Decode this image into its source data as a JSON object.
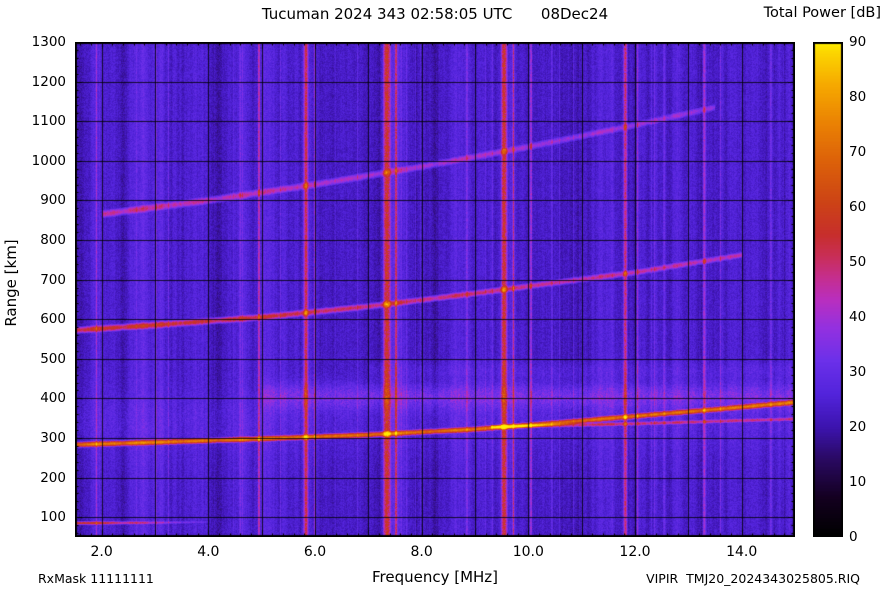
{
  "header": {
    "colorbar_title": "Total Power [dB]"
  },
  "footer": {
    "rxmask": "RxMask 11111111",
    "filename": "VIPIR  TMJ20_2024343025805.RIQ"
  },
  "chart_data": {
    "type": "heatmap",
    "title": "Tucuman 2024 343 02:58:05 UTC      08Dec24",
    "station": "Tucuman",
    "timestamp": "2024 343 02:58:05 UTC",
    "date": "08Dec24",
    "xlabel": "Frequency [MHz]",
    "ylabel": "Range [km]",
    "colorbar_label": "Total Power [dB]",
    "xlim": [
      1.5,
      15.0
    ],
    "ylim": [
      50,
      1300
    ],
    "xticks": [
      2.0,
      4.0,
      6.0,
      8.0,
      10.0,
      12.0,
      14.0
    ],
    "yticks": [
      100,
      200,
      300,
      400,
      500,
      600,
      700,
      800,
      900,
      1000,
      1100,
      1200,
      1300
    ],
    "colorbar_ticks": [
      0,
      10,
      20,
      30,
      40,
      50,
      60,
      70,
      80,
      90
    ],
    "grid": {
      "x_step_mhz": 1.0,
      "y_step_km": 100
    },
    "background_db": 24,
    "colormap": [
      [
        0,
        "#000000"
      ],
      [
        7,
        "#140020"
      ],
      [
        14,
        "#2a0a62"
      ],
      [
        20,
        "#3d14b0"
      ],
      [
        26,
        "#5324dc"
      ],
      [
        32,
        "#6c30ea"
      ],
      [
        38,
        "#9431e0"
      ],
      [
        43,
        "#b92fc0"
      ],
      [
        47,
        "#c52e90"
      ],
      [
        51,
        "#c92e58"
      ],
      [
        55,
        "#c72f2c"
      ],
      [
        61,
        "#cd4416"
      ],
      [
        68,
        "#dc600a"
      ],
      [
        75,
        "#ea8104"
      ],
      [
        82,
        "#f6a800"
      ],
      [
        88,
        "#fcd400"
      ],
      [
        90,
        "#ffef00"
      ]
    ],
    "rfi_stripes": [
      {
        "freq": 1.9,
        "sigma": 0.02,
        "amp_db": 36
      },
      {
        "freq": 3.25,
        "sigma": 0.02,
        "amp_db": 31
      },
      {
        "freq": 4.6,
        "sigma": 0.03,
        "amp_db": 32
      },
      {
        "freq": 4.95,
        "sigma": 0.025,
        "amp_db": 45
      },
      {
        "freq": 5.35,
        "sigma": 0.02,
        "amp_db": 33
      },
      {
        "freq": 5.83,
        "sigma": 0.045,
        "amp_db": 51
      },
      {
        "freq": 6.0,
        "sigma": 0.02,
        "amp_db": 42
      },
      {
        "freq": 7.35,
        "sigma": 0.07,
        "amp_db": 56
      },
      {
        "freq": 7.52,
        "sigma": 0.025,
        "amp_db": 46
      },
      {
        "freq": 8.85,
        "sigma": 0.04,
        "amp_db": 31
      },
      {
        "freq": 9.55,
        "sigma": 0.055,
        "amp_db": 55
      },
      {
        "freq": 9.72,
        "sigma": 0.02,
        "amp_db": 46
      },
      {
        "freq": 10.05,
        "sigma": 0.02,
        "amp_db": 43
      },
      {
        "freq": 11.82,
        "sigma": 0.04,
        "amp_db": 49
      },
      {
        "freq": 12.05,
        "sigma": 0.02,
        "amp_db": 38
      },
      {
        "freq": 12.55,
        "sigma": 0.03,
        "amp_db": 33
      },
      {
        "freq": 13.3,
        "sigma": 0.035,
        "amp_db": 41
      },
      {
        "freq": 13.6,
        "sigma": 0.02,
        "amp_db": 34
      },
      {
        "freq": 14.55,
        "sigma": 0.03,
        "amp_db": 33
      }
    ],
    "echo_traces": [
      {
        "name": "low-altitude-echo",
        "fmin": 1.5,
        "fmax": 4.0,
        "sigma_km": 4,
        "amp_start": 62,
        "amp_end": 28,
        "points": [
          [
            1.5,
            85
          ],
          [
            3.0,
            86
          ],
          [
            4.0,
            88
          ]
        ]
      },
      {
        "name": "f-region-first-hop",
        "fmin": 1.5,
        "fmax": 15.0,
        "sigma_km": 6,
        "amp_start": 72,
        "amp_end": 67,
        "points": [
          [
            1.5,
            283
          ],
          [
            3,
            289
          ],
          [
            5,
            298
          ],
          [
            7,
            308
          ],
          [
            9,
            322
          ],
          [
            10.5,
            338
          ],
          [
            12,
            355
          ],
          [
            13.5,
            372
          ],
          [
            15,
            390
          ]
        ]
      },
      {
        "name": "x-mode-branch",
        "fmin": 9.3,
        "fmax": 15.0,
        "sigma_km": 5,
        "amp_start": 50,
        "amp_end": 44,
        "points": [
          [
            9.3,
            328
          ],
          [
            12,
            336
          ],
          [
            15,
            348
          ]
        ]
      },
      {
        "name": "second-hop",
        "fmin": 1.5,
        "fmax": 14.0,
        "sigma_km": 8,
        "amp_start": 57,
        "amp_end": 44,
        "points": [
          [
            1.5,
            572
          ],
          [
            3,
            585
          ],
          [
            5,
            605
          ],
          [
            7,
            632
          ],
          [
            9,
            665
          ],
          [
            10.5,
            692
          ],
          [
            12,
            718
          ],
          [
            13,
            740
          ],
          [
            14,
            762
          ]
        ]
      },
      {
        "name": "third-hop",
        "fmin": 2.0,
        "fmax": 13.5,
        "sigma_km": 10,
        "amp_start": 46,
        "amp_end": 38,
        "points": [
          [
            2,
            865
          ],
          [
            4,
            900
          ],
          [
            6,
            940
          ],
          [
            8,
            985
          ],
          [
            10,
            1035
          ],
          [
            12,
            1090
          ],
          [
            13.5,
            1135
          ]
        ]
      }
    ],
    "diffuse_bands": [
      {
        "range_km": 405,
        "sigma_km": 22,
        "amp_db": 9,
        "fmin": 5.0,
        "fmax": 15.0
      },
      {
        "range_km": 340,
        "sigma_km": 55,
        "amp_db": 3,
        "fmin": 1.5,
        "fmax": 15.0
      },
      {
        "range_km": 470,
        "sigma_km": 14,
        "amp_db": 3,
        "fmin": 7.0,
        "fmax": 15.0
      }
    ]
  }
}
